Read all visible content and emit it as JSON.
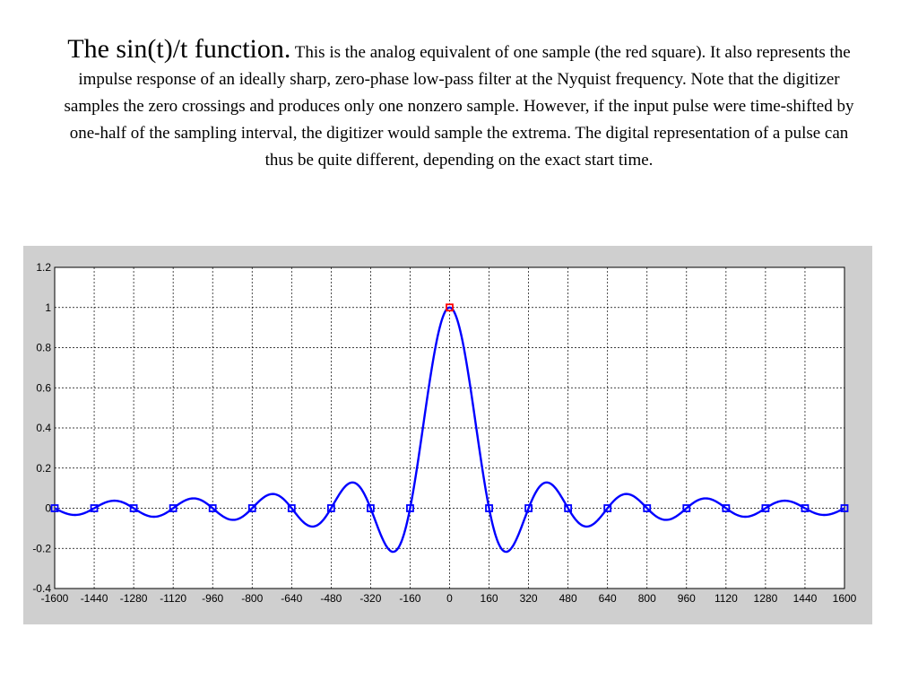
{
  "caption": {
    "lead": "The sin(t)/t function.",
    "body": "This is the analog equivalent of one sample (the red square). It also represents the impulse response of an ideally sharp, zero-phase low-pass filter at the Nyquist frequency. Note that the digitizer samples the zero crossings and produces only one nonzero sample. However, if the input pulse were time-shifted by one-half of the sampling interval, the digitizer would sample the extrema. The digital representation of a pulse can thus be quite different, depending on the exact start time."
  },
  "chart_data": {
    "type": "line",
    "title": "",
    "xlabel": "",
    "ylabel": "",
    "xlim": [
      -1600,
      1600
    ],
    "ylim": [
      -0.4,
      1.2
    ],
    "grid": true,
    "x_ticks": [
      -1600,
      -1440,
      -1280,
      -1120,
      -960,
      -800,
      -640,
      -480,
      -320,
      -160,
      0,
      160,
      320,
      480,
      640,
      800,
      960,
      1120,
      1280,
      1440,
      1600
    ],
    "x_tick_labels": [
      "-1600",
      "-1440",
      "-1280",
      "-1120",
      "-960",
      "-800",
      "-640",
      "-480",
      "-320",
      "-160",
      "0",
      "160",
      "320",
      "480",
      "640",
      "800",
      "960",
      "1120",
      "1280",
      "1440",
      "1600"
    ],
    "y_ticks": [
      -0.4,
      -0.2,
      0,
      0.2,
      0.4,
      0.6,
      0.8,
      1,
      1.2
    ],
    "y_tick_labels": [
      "-0.4",
      "-0.2",
      "0",
      "0.2",
      "0.4",
      "0.6",
      "0.8",
      "1",
      "1.2"
    ],
    "curve": {
      "function": "sin(pi*t/160)/(pi*t/160)",
      "x_range": [
        -1600,
        1600
      ],
      "color": "#0000ff"
    },
    "samples": {
      "x": [
        -1600,
        -1440,
        -1280,
        -1120,
        -960,
        -800,
        -640,
        -480,
        -320,
        -160,
        0,
        160,
        320,
        480,
        640,
        800,
        960,
        1120,
        1280,
        1440,
        1600
      ],
      "y": [
        0,
        0,
        0,
        0,
        0,
        0,
        0,
        0,
        0,
        0,
        1,
        0,
        0,
        0,
        0,
        0,
        0,
        0,
        0,
        0,
        0
      ],
      "color": "#0000ff",
      "highlight_color": "#ff0000"
    }
  }
}
